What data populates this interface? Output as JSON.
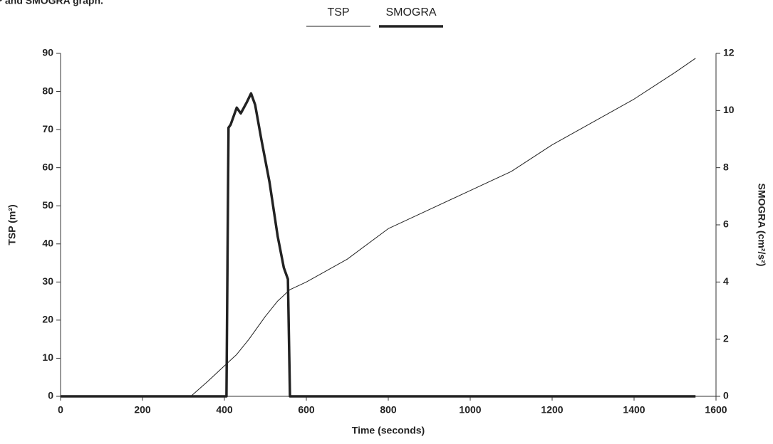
{
  "chart_data": {
    "type": "line",
    "title": "P and SMOGRA graph.",
    "xlabel": "Time (seconds)",
    "ylabel": "TSP (m²)",
    "y2label": "SMOGRA (cm²/s²)",
    "xlim": [
      0,
      1600
    ],
    "xticks": [
      0,
      200,
      400,
      600,
      800,
      1000,
      1200,
      1400,
      1600
    ],
    "ylim": [
      0,
      90
    ],
    "yticks": [
      0,
      10,
      20,
      30,
      40,
      50,
      60,
      70,
      80,
      90
    ],
    "y2lim": [
      0,
      12
    ],
    "y2ticks": [
      0,
      2,
      4,
      6,
      8,
      10,
      12
    ],
    "legend": "top",
    "series": [
      {
        "name": "TSP",
        "color": "#222222",
        "width": 1,
        "x": [
          318,
          360,
          400,
          430,
          460,
          500,
          530,
          560,
          600,
          700,
          800,
          900,
          1000,
          1100,
          1200,
          1300,
          1400,
          1500,
          1550
        ],
        "values": [
          0,
          4,
          8,
          11,
          15,
          21,
          25,
          28,
          30,
          36,
          44,
          49,
          54,
          59,
          66,
          72,
          78,
          85,
          88.7
        ]
      },
      {
        "name": "SMOGRA",
        "color": "#222222",
        "width": 3.5,
        "axis": "y2",
        "x": [
          0,
          405,
          410,
          415,
          430,
          440,
          455,
          465,
          475,
          490,
          510,
          530,
          545,
          555,
          560,
          1550
        ],
        "values": [
          0,
          0,
          9.4,
          9.5,
          10.1,
          9.9,
          10.3,
          10.6,
          10.2,
          9.0,
          7.5,
          5.6,
          4.5,
          4.1,
          0,
          0
        ]
      }
    ]
  }
}
